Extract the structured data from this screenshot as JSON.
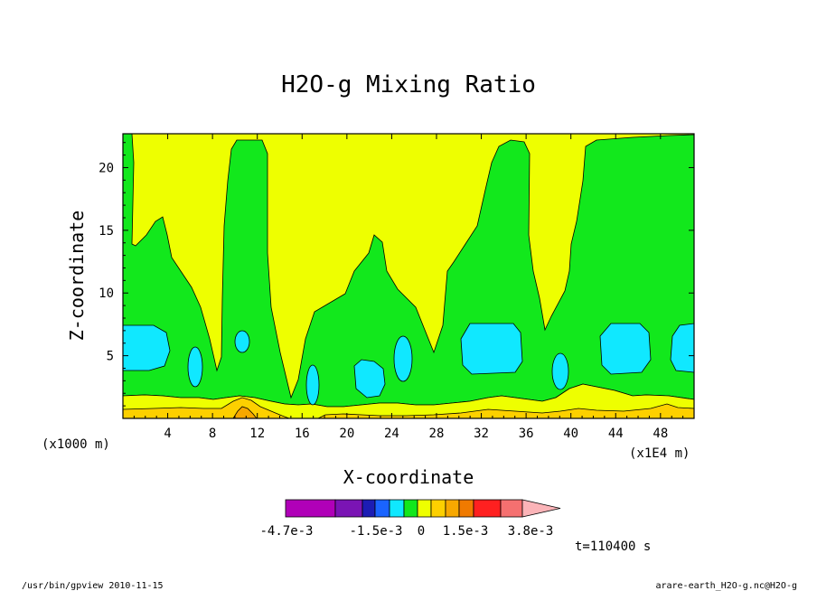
{
  "chart_data": {
    "type": "contour",
    "title": "H2O-g Mixing Ratio",
    "xlabel": "X-coordinate",
    "ylabel": "Z-coordinate",
    "x_unit_left": "(x1000 m)",
    "x_unit_right": "(x1E4 m)",
    "xlim": [
      0,
      51
    ],
    "ylim": [
      0,
      22.7
    ],
    "x_ticks": [
      4,
      8,
      12,
      16,
      20,
      24,
      28,
      32,
      36,
      40,
      44,
      48
    ],
    "y_ticks": [
      5,
      10,
      15,
      20
    ],
    "colorbar": {
      "labels": [
        "-4.7e-3",
        "-1.5e-3",
        "0",
        "1.5e-3",
        "3.8e-3"
      ],
      "colors": [
        "#b000b8",
        "#7a14b4",
        "#1c1cb4",
        "#1a64ff",
        "#10e8ff",
        "#12e81c",
        "#eeff00",
        "#fdd000",
        "#f7a800",
        "#f07a00",
        "#ff2020",
        "#f57070",
        "#fbb4b8"
      ]
    },
    "palette": {
      "background": "#eeff00",
      "green": "#12e81c",
      "cyan": "#10e8ff",
      "yellow": "#eeff00",
      "gold": "#fdd000",
      "orange": "#f7a800"
    },
    "time": "t=110400 s"
  },
  "footer": {
    "left": "/usr/bin/gpview  2010-11-15",
    "right": "arare-earth_H2O-g.nc@H2O-g"
  }
}
